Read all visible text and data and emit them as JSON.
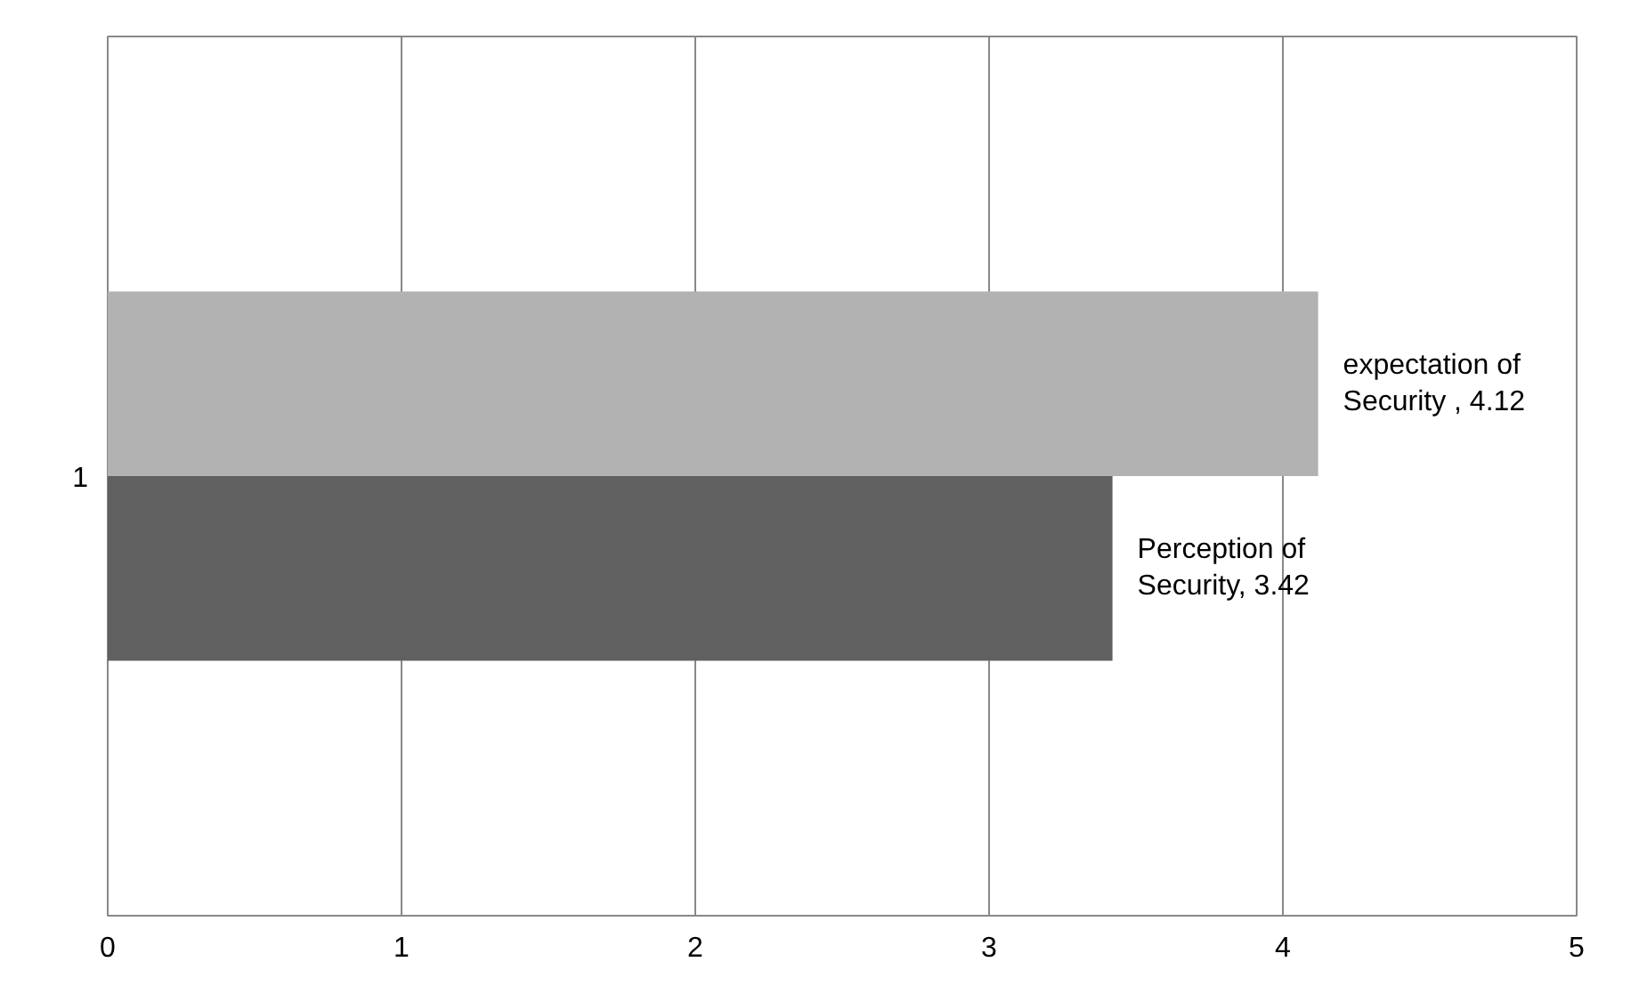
{
  "chart_data": {
    "type": "bar",
    "orientation": "horizontal",
    "categories": [
      "1"
    ],
    "series": [
      {
        "color": "#b2b2b2",
        "values": [
          4.12
        ],
        "value_labels": [
          "expectation of Security , 4.12"
        ]
      },
      {
        "color": "#606060",
        "values": [
          3.42
        ],
        "value_labels": [
          "Perception of Security, 3.42"
        ]
      }
    ],
    "xlim": [
      0,
      5
    ],
    "xticks": [
      0,
      1,
      2,
      3,
      4,
      5
    ],
    "grid": "x"
  }
}
